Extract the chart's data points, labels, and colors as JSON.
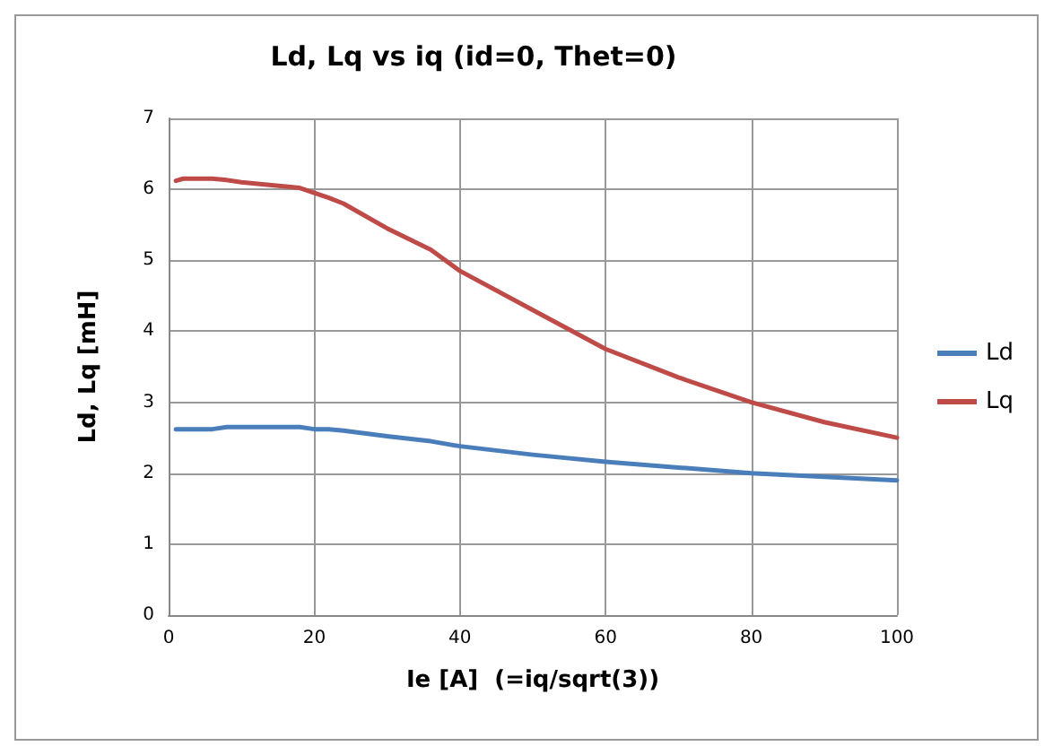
{
  "chart_data": {
    "type": "line",
    "title": "Ld, Lq vs iq (id=0, Thet=0)",
    "xlabel": "Ie [A]  (=iq/sqrt(3))",
    "ylabel": "Ld, Lq [mH]",
    "x": [
      1,
      2,
      6,
      8,
      10,
      18,
      20,
      22,
      24,
      30,
      36,
      40,
      50,
      60,
      70,
      80,
      90,
      100
    ],
    "series": [
      {
        "name": "Ld",
        "color": "#4a7ebb",
        "values": [
          2.62,
          2.62,
          2.62,
          2.65,
          2.65,
          2.65,
          2.62,
          2.62,
          2.6,
          2.52,
          2.45,
          2.38,
          2.26,
          2.16,
          2.08,
          2.0,
          1.95,
          1.9
        ]
      },
      {
        "name": "Lq",
        "color": "#be4b48",
        "values": [
          6.12,
          6.15,
          6.15,
          6.13,
          6.1,
          6.02,
          5.95,
          5.88,
          5.8,
          5.45,
          5.15,
          4.85,
          4.3,
          3.75,
          3.35,
          3.0,
          2.72,
          2.5
        ]
      }
    ],
    "xlim": [
      0,
      100
    ],
    "xticks": [
      0,
      20,
      40,
      60,
      80,
      100
    ],
    "ylim": [
      0,
      7
    ],
    "yticks": [
      0,
      1,
      2,
      3,
      4,
      5,
      6,
      7
    ],
    "grid": true,
    "legend": "right",
    "marker": "none",
    "line_style": "solid"
  }
}
